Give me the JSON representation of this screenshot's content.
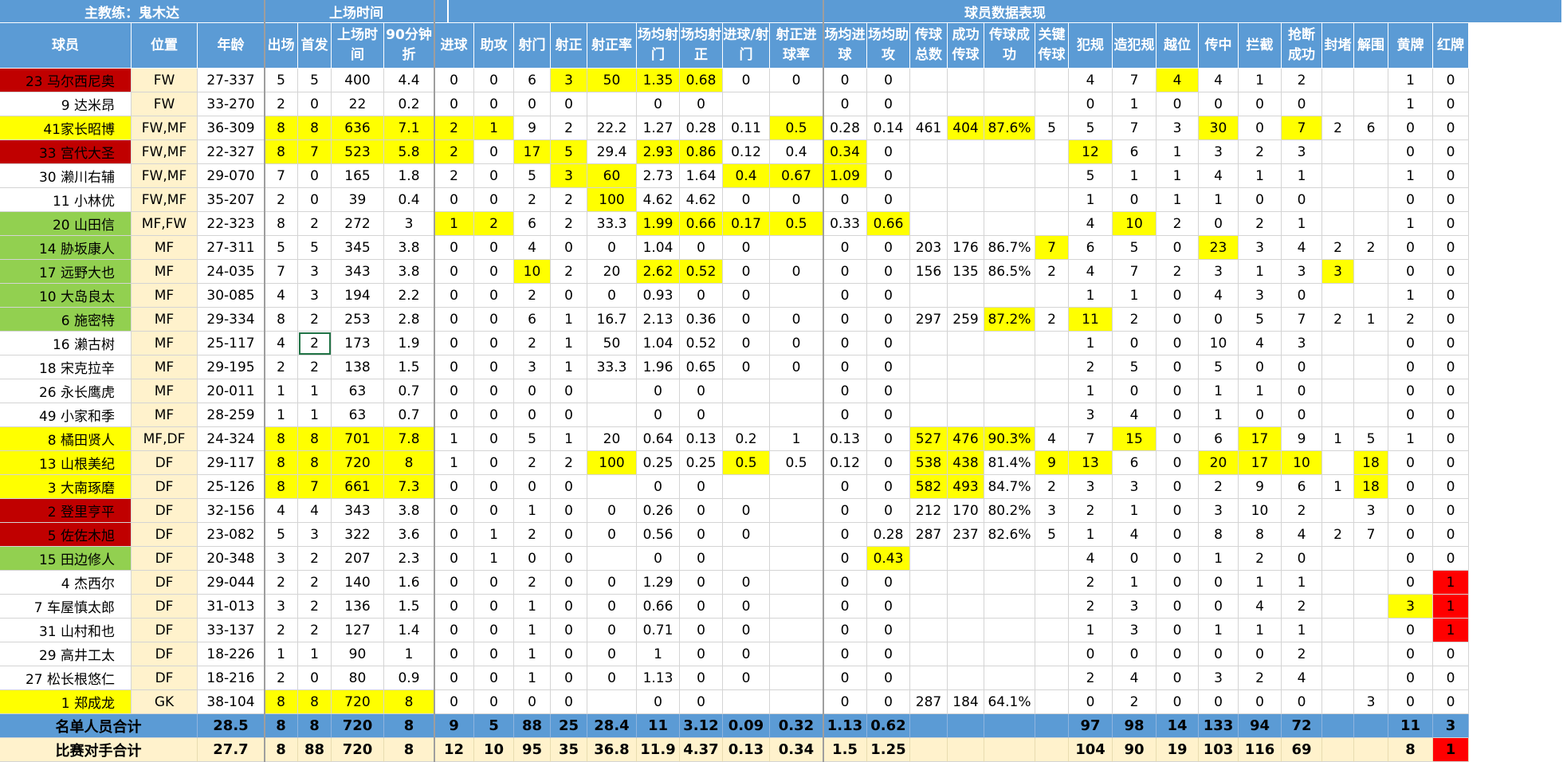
{
  "sheet": {
    "coach_label": "主教练：鬼木达",
    "group_headers": {
      "playing_time": "上场时间",
      "stats": "球员数据表现"
    },
    "columns": [
      "球员",
      "位置",
      "年龄",
      "出场",
      "首发",
      "上场时间",
      "90分钟折",
      "进球",
      "助攻",
      "射门",
      "射正",
      "射正率",
      "场均射门",
      "场均射正",
      "进球/射门",
      "射正进球率",
      "场均进球",
      "场均助攻",
      "传球总数",
      "成功传球",
      "传球成功",
      "关键传球",
      "犯规",
      "造犯规",
      "越位",
      "传中",
      "拦截",
      "抢断成功",
      "封堵",
      "解围",
      "黄牌",
      "红牌"
    ],
    "rows": [
      {
        "cells": [
          "23 马尔西尼奥",
          "FW",
          "27-337",
          "5",
          "5",
          "400",
          "4.4",
          "0",
          "0",
          "6",
          "3",
          "50",
          "1.35",
          "0.68",
          "0",
          "0",
          "0",
          "0",
          "",
          "",
          "",
          "",
          "4",
          "7",
          "4",
          "4",
          "1",
          "2",
          "",
          "",
          "1",
          "0"
        ],
        "hl": {
          "0": "red",
          "10": "yel",
          "11": "yel",
          "12": "yel",
          "13": "yel",
          "24": "yel"
        }
      },
      {
        "cells": [
          "9 达米昂",
          "FW",
          "33-270",
          "2",
          "0",
          "22",
          "0.2",
          "0",
          "0",
          "0",
          "0",
          "",
          "0",
          "0",
          "",
          "",
          "0",
          "0",
          "",
          "",
          "",
          "",
          "0",
          "1",
          "0",
          "0",
          "0",
          "0",
          "",
          "",
          "1",
          "0"
        ],
        "hl": {}
      },
      {
        "cells": [
          "41家长昭博",
          "FW,MF",
          "36-309",
          "8",
          "8",
          "636",
          "7.1",
          "2",
          "1",
          "9",
          "2",
          "22.2",
          "1.27",
          "0.28",
          "0.11",
          "0.5",
          "0.28",
          "0.14",
          "461",
          "404",
          "87.6%",
          "5",
          "5",
          "7",
          "3",
          "30",
          "0",
          "7",
          "2",
          "6",
          "0",
          "0"
        ],
        "hl": {
          "0": "yel",
          "3": "yel",
          "4": "yel",
          "5": "yel",
          "6": "yel",
          "7": "yel",
          "8": "yel",
          "15": "yel",
          "19": "yel",
          "20": "yel",
          "25": "yel",
          "27": "yel"
        }
      },
      {
        "cells": [
          "33 宫代大圣",
          "FW,MF",
          "22-327",
          "8",
          "7",
          "523",
          "5.8",
          "2",
          "0",
          "17",
          "5",
          "29.4",
          "2.93",
          "0.86",
          "0.12",
          "0.4",
          "0.34",
          "0",
          "",
          "",
          "",
          "",
          "12",
          "6",
          "1",
          "3",
          "2",
          "3",
          "",
          "",
          "0",
          "0"
        ],
        "hl": {
          "0": "red",
          "3": "yel",
          "4": "yel",
          "5": "yel",
          "6": "yel",
          "7": "yel",
          "9": "yel",
          "10": "yel",
          "12": "yel",
          "13": "yel",
          "16": "yel",
          "22": "yel"
        }
      },
      {
        "cells": [
          "30 濑川右辅",
          "FW,MF",
          "29-070",
          "7",
          "0",
          "165",
          "1.8",
          "2",
          "0",
          "5",
          "3",
          "60",
          "2.73",
          "1.64",
          "0.4",
          "0.67",
          "1.09",
          "0",
          "",
          "",
          "",
          "",
          "5",
          "1",
          "1",
          "4",
          "1",
          "1",
          "",
          "",
          "1",
          "0"
        ],
        "hl": {
          "10": "yel",
          "11": "yel",
          "14": "yel",
          "15": "yel",
          "16": "yel"
        }
      },
      {
        "cells": [
          "11 小林优",
          "FW,MF",
          "35-207",
          "2",
          "0",
          "39",
          "0.4",
          "0",
          "0",
          "2",
          "2",
          "100",
          "4.62",
          "4.62",
          "0",
          "0",
          "0",
          "0",
          "",
          "",
          "",
          "",
          "1",
          "0",
          "1",
          "1",
          "0",
          "0",
          "",
          "",
          "0",
          "0"
        ],
        "hl": {
          "11": "yel"
        }
      },
      {
        "cells": [
          "20 山田信",
          "MF,FW",
          "22-323",
          "8",
          "2",
          "272",
          "3",
          "1",
          "2",
          "6",
          "2",
          "33.3",
          "1.99",
          "0.66",
          "0.17",
          "0.5",
          "0.33",
          "0.66",
          "",
          "",
          "",
          "",
          "4",
          "10",
          "2",
          "0",
          "2",
          "1",
          "",
          "",
          "1",
          "0"
        ],
        "hl": {
          "0": "green",
          "7": "yel",
          "8": "yel",
          "12": "yel",
          "13": "yel",
          "14": "yel",
          "15": "yel",
          "17": "yel",
          "23": "yel"
        }
      },
      {
        "cells": [
          "14 胁坂康人",
          "MF",
          "27-311",
          "5",
          "5",
          "345",
          "3.8",
          "0",
          "0",
          "4",
          "0",
          "0",
          "1.04",
          "0",
          "0",
          "",
          "0",
          "0",
          "203",
          "176",
          "86.7%",
          "7",
          "6",
          "5",
          "0",
          "23",
          "3",
          "4",
          "2",
          "2",
          "0",
          "0"
        ],
        "hl": {
          "0": "green",
          "21": "yel",
          "25": "yel"
        }
      },
      {
        "cells": [
          "17 远野大也",
          "MF",
          "24-035",
          "7",
          "3",
          "343",
          "3.8",
          "0",
          "0",
          "10",
          "2",
          "20",
          "2.62",
          "0.52",
          "0",
          "0",
          "0",
          "0",
          "156",
          "135",
          "86.5%",
          "2",
          "4",
          "7",
          "2",
          "3",
          "1",
          "3",
          "3",
          "",
          "0",
          "0"
        ],
        "hl": {
          "0": "green",
          "9": "yel",
          "12": "yel",
          "13": "yel",
          "28": "yel"
        }
      },
      {
        "cells": [
          "10 大岛良太",
          "MF",
          "30-085",
          "4",
          "3",
          "194",
          "2.2",
          "0",
          "0",
          "2",
          "0",
          "0",
          "0.93",
          "0",
          "0",
          "",
          "0",
          "0",
          "",
          "",
          "",
          "",
          "1",
          "1",
          "0",
          "4",
          "3",
          "0",
          "",
          "",
          "1",
          "0"
        ],
        "hl": {
          "0": "green"
        }
      },
      {
        "cells": [
          "6 施密特",
          "MF",
          "29-334",
          "8",
          "2",
          "253",
          "2.8",
          "0",
          "0",
          "6",
          "1",
          "16.7",
          "2.13",
          "0.36",
          "0",
          "0",
          "0",
          "0",
          "297",
          "259",
          "87.2%",
          "2",
          "11",
          "2",
          "0",
          "0",
          "5",
          "7",
          "2",
          "1",
          "2",
          "0"
        ],
        "hl": {
          "0": "green",
          "20": "yel",
          "22": "yel"
        }
      },
      {
        "cells": [
          "16 濑古树",
          "MF",
          "25-117",
          "4",
          "2",
          "173",
          "1.9",
          "0",
          "0",
          "2",
          "1",
          "50",
          "1.04",
          "0.52",
          "0",
          "0",
          "0",
          "0",
          "",
          "",
          "",
          "",
          "1",
          "0",
          "0",
          "10",
          "4",
          "3",
          "",
          "",
          "0",
          "0"
        ],
        "hl": {}
      },
      {
        "cells": [
          "18 宋克拉辛",
          "MF",
          "29-195",
          "2",
          "2",
          "138",
          "1.5",
          "0",
          "0",
          "3",
          "1",
          "33.3",
          "1.96",
          "0.65",
          "0",
          "0",
          "0",
          "0",
          "",
          "",
          "",
          "",
          "2",
          "5",
          "0",
          "5",
          "0",
          "0",
          "",
          "",
          "0",
          "0"
        ],
        "hl": {}
      },
      {
        "cells": [
          "26 永长鹰虎",
          "MF",
          "20-011",
          "1",
          "1",
          "63",
          "0.7",
          "0",
          "0",
          "0",
          "0",
          "",
          "0",
          "0",
          "",
          "",
          "0",
          "0",
          "",
          "",
          "",
          "",
          "1",
          "0",
          "0",
          "1",
          "1",
          "0",
          "",
          "",
          "0",
          "0"
        ],
        "hl": {}
      },
      {
        "cells": [
          "49 小家和季",
          "MF",
          "28-259",
          "1",
          "1",
          "63",
          "0.7",
          "0",
          "0",
          "0",
          "0",
          "",
          "0",
          "0",
          "",
          "",
          "0",
          "0",
          "",
          "",
          "",
          "",
          "3",
          "4",
          "0",
          "1",
          "0",
          "0",
          "",
          "",
          "0",
          "0"
        ],
        "hl": {}
      },
      {
        "cells": [
          "8 橘田贤人",
          "MF,DF",
          "24-324",
          "8",
          "8",
          "701",
          "7.8",
          "1",
          "0",
          "5",
          "1",
          "20",
          "0.64",
          "0.13",
          "0.2",
          "1",
          "0.13",
          "0",
          "527",
          "476",
          "90.3%",
          "4",
          "7",
          "15",
          "0",
          "6",
          "17",
          "9",
          "1",
          "5",
          "1",
          "0"
        ],
        "hl": {
          "0": "yel",
          "3": "yel",
          "4": "yel",
          "5": "yel",
          "6": "yel",
          "18": "yel",
          "19": "yel",
          "20": "yel",
          "23": "yel",
          "26": "yel"
        }
      },
      {
        "cells": [
          "13 山根美纪",
          "DF",
          "29-117",
          "8",
          "8",
          "720",
          "8",
          "1",
          "0",
          "2",
          "2",
          "100",
          "0.25",
          "0.25",
          "0.5",
          "0.5",
          "0.12",
          "0",
          "538",
          "438",
          "81.4%",
          "9",
          "13",
          "6",
          "0",
          "20",
          "17",
          "10",
          "",
          "18",
          "0",
          "0"
        ],
        "hl": {
          "0": "yel",
          "3": "yel",
          "4": "yel",
          "5": "yel",
          "6": "yel",
          "11": "yel",
          "14": "yel",
          "18": "yel",
          "19": "yel",
          "21": "yel",
          "22": "yel",
          "25": "yel",
          "26": "yel",
          "27": "yel",
          "29": "yel"
        }
      },
      {
        "cells": [
          "3 大南琢磨",
          "DF",
          "25-126",
          "8",
          "7",
          "661",
          "7.3",
          "0",
          "0",
          "0",
          "0",
          "",
          "0",
          "0",
          "",
          "",
          "0",
          "0",
          "582",
          "493",
          "84.7%",
          "2",
          "3",
          "3",
          "0",
          "2",
          "9",
          "6",
          "1",
          "18",
          "0",
          "0"
        ],
        "hl": {
          "0": "yel",
          "3": "yel",
          "4": "yel",
          "5": "yel",
          "6": "yel",
          "18": "yel",
          "19": "yel",
          "29": "yel"
        }
      },
      {
        "cells": [
          "2 登里亨平",
          "DF",
          "32-156",
          "4",
          "4",
          "343",
          "3.8",
          "0",
          "0",
          "1",
          "0",
          "0",
          "0.26",
          "0",
          "0",
          "",
          "0",
          "0",
          "212",
          "170",
          "80.2%",
          "3",
          "2",
          "1",
          "0",
          "3",
          "10",
          "2",
          "",
          "3",
          "0",
          "0"
        ],
        "hl": {
          "0": "red"
        }
      },
      {
        "cells": [
          "5 佐佐木旭",
          "DF",
          "23-082",
          "5",
          "3",
          "322",
          "3.6",
          "0",
          "1",
          "2",
          "0",
          "0",
          "0.56",
          "0",
          "0",
          "",
          "0",
          "0.28",
          "287",
          "237",
          "82.6%",
          "5",
          "1",
          "4",
          "0",
          "8",
          "8",
          "4",
          "2",
          "7",
          "0",
          "0"
        ],
        "hl": {
          "0": "red"
        }
      },
      {
        "cells": [
          "15 田边修人",
          "DF",
          "20-348",
          "3",
          "2",
          "207",
          "2.3",
          "0",
          "1",
          "0",
          "0",
          "",
          "0",
          "0",
          "",
          "",
          "0",
          "0.43",
          "",
          "",
          "",
          "",
          "4",
          "0",
          "0",
          "1",
          "2",
          "0",
          "",
          "",
          "0",
          "0"
        ],
        "hl": {
          "0": "green",
          "17": "yel"
        }
      },
      {
        "cells": [
          "4 杰西尔",
          "DF",
          "29-044",
          "2",
          "2",
          "140",
          "1.6",
          "0",
          "0",
          "2",
          "0",
          "0",
          "1.29",
          "0",
          "0",
          "",
          "0",
          "0",
          "",
          "",
          "",
          "",
          "2",
          "1",
          "0",
          "0",
          "1",
          "1",
          "",
          "",
          "0",
          "1"
        ],
        "hl": {
          "31": "redbright"
        }
      },
      {
        "cells": [
          "7 车屋慎太郎",
          "DF",
          "31-013",
          "3",
          "2",
          "136",
          "1.5",
          "0",
          "0",
          "1",
          "0",
          "0",
          "0.66",
          "0",
          "0",
          "",
          "0",
          "0",
          "",
          "",
          "",
          "",
          "2",
          "3",
          "0",
          "0",
          "4",
          "2",
          "",
          "",
          "3",
          "1"
        ],
        "hl": {
          "30": "yel",
          "31": "redbright"
        }
      },
      {
        "cells": [
          "31 山村和也",
          "DF",
          "33-137",
          "2",
          "2",
          "127",
          "1.4",
          "0",
          "0",
          "1",
          "0",
          "0",
          "0.71",
          "0",
          "0",
          "",
          "0",
          "0",
          "",
          "",
          "",
          "",
          "1",
          "3",
          "0",
          "1",
          "1",
          "1",
          "",
          "",
          "0",
          "1"
        ],
        "hl": {
          "31": "redbright"
        }
      },
      {
        "cells": [
          "29 高井工太",
          "DF",
          "18-226",
          "1",
          "1",
          "90",
          "1",
          "0",
          "0",
          "1",
          "0",
          "0",
          "1",
          "0",
          "0",
          "",
          "0",
          "0",
          "",
          "",
          "",
          "",
          "0",
          "0",
          "0",
          "0",
          "0",
          "2",
          "",
          "",
          "0",
          "0"
        ],
        "hl": {}
      },
      {
        "cells": [
          "27 松长根悠仁",
          "DF",
          "18-216",
          "2",
          "0",
          "80",
          "0.9",
          "0",
          "0",
          "1",
          "0",
          "0",
          "1.13",
          "0",
          "0",
          "",
          "0",
          "0",
          "",
          "",
          "",
          "",
          "2",
          "4",
          "0",
          "3",
          "2",
          "4",
          "",
          "",
          "0",
          "0"
        ],
        "hl": {}
      },
      {
        "cells": [
          "1 郑成龙",
          "GK",
          "38-104",
          "8",
          "8",
          "720",
          "8",
          "0",
          "0",
          "0",
          "0",
          "",
          "0",
          "0",
          "",
          "",
          "0",
          "0",
          "287",
          "184",
          "64.1%",
          "",
          "0",
          "2",
          "0",
          "0",
          "0",
          "0",
          "",
          "3",
          "0",
          "0"
        ],
        "hl": {
          "0": "yel",
          "3": "yel",
          "4": "yel",
          "5": "yel",
          "6": "yel"
        }
      }
    ],
    "summary": [
      {
        "cells": [
          "名单人员合计",
          "",
          "28.5",
          "8",
          "8",
          "720",
          "8",
          "9",
          "5",
          "88",
          "25",
          "28.4",
          "11",
          "3.12",
          "0.09",
          "0.32",
          "1.13",
          "0.62",
          "",
          "",
          "",
          "",
          "97",
          "98",
          "14",
          "133",
          "94",
          "72",
          "",
          "",
          "11",
          "3"
        ],
        "style": "A",
        "hl": {}
      },
      {
        "cells": [
          "比赛对手合计",
          "",
          "27.7",
          "8",
          "88",
          "720",
          "8",
          "12",
          "10",
          "95",
          "35",
          "36.8",
          "11.9",
          "4.37",
          "0.13",
          "0.34",
          "1.5",
          "1.25",
          "",
          "",
          "",
          "",
          "104",
          "90",
          "19",
          "103",
          "116",
          "69",
          "",
          "",
          "8",
          "1"
        ],
        "style": "B",
        "hl": {
          "31": "redbright"
        }
      }
    ],
    "selected_cell": "16 濑古树 / 首发",
    "colors": {
      "header_blue": "#5b9bd5",
      "position_cream": "#fff2cc",
      "highlight_yellow": "#ffff00",
      "dark_red": "#c00000",
      "green": "#92d050",
      "bright_red": "#ff0000"
    }
  }
}
